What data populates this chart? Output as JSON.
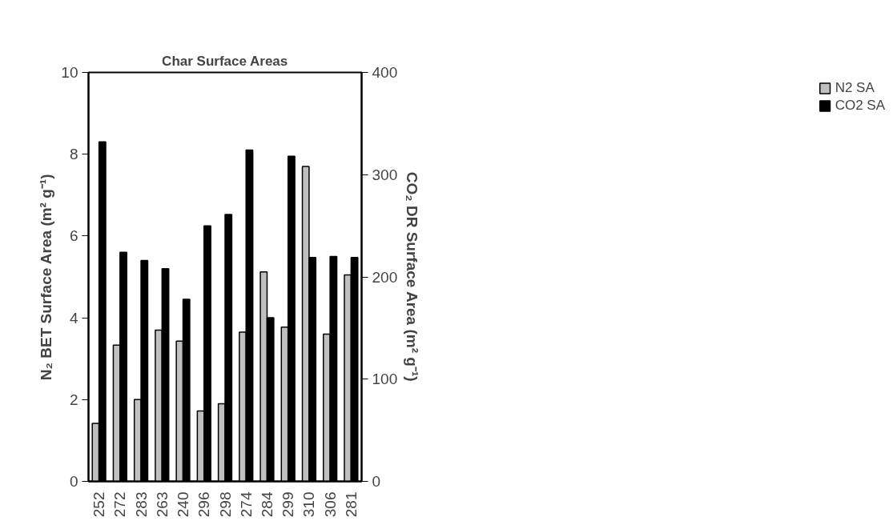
{
  "chart_data": {
    "type": "bar",
    "title": "Char Surface Areas",
    "ylabel": "N₂ BET Surface Area (m² g⁻¹)",
    "y2label": "CO₂ DR Surface Area (m² g⁻¹)",
    "categories": [
      "252",
      "272",
      "283",
      "263",
      "240",
      "296",
      "298",
      "274",
      "284",
      "299",
      "310",
      "306",
      "281"
    ],
    "series": [
      {
        "name": "N2 SA",
        "color": "#c0c0c0",
        "values": [
          1.42,
          3.33,
          2.0,
          3.7,
          3.43,
          1.72,
          1.9,
          3.65,
          5.12,
          3.77,
          7.7,
          3.6,
          5.05
        ]
      },
      {
        "name": "CO2 SA",
        "color": "#000000",
        "axis": "y2",
        "values": [
          332,
          224,
          216,
          208,
          178,
          250,
          261,
          324,
          160,
          318,
          219,
          220,
          219
        ]
      }
    ],
    "ylim": [
      0,
      10
    ],
    "yticks": [
      0,
      2,
      4,
      6,
      8,
      10
    ],
    "y2lim": [
      0,
      400
    ],
    "y2ticks": [
      0,
      100,
      200,
      300,
      400
    ],
    "grid": false,
    "legend": "right"
  }
}
